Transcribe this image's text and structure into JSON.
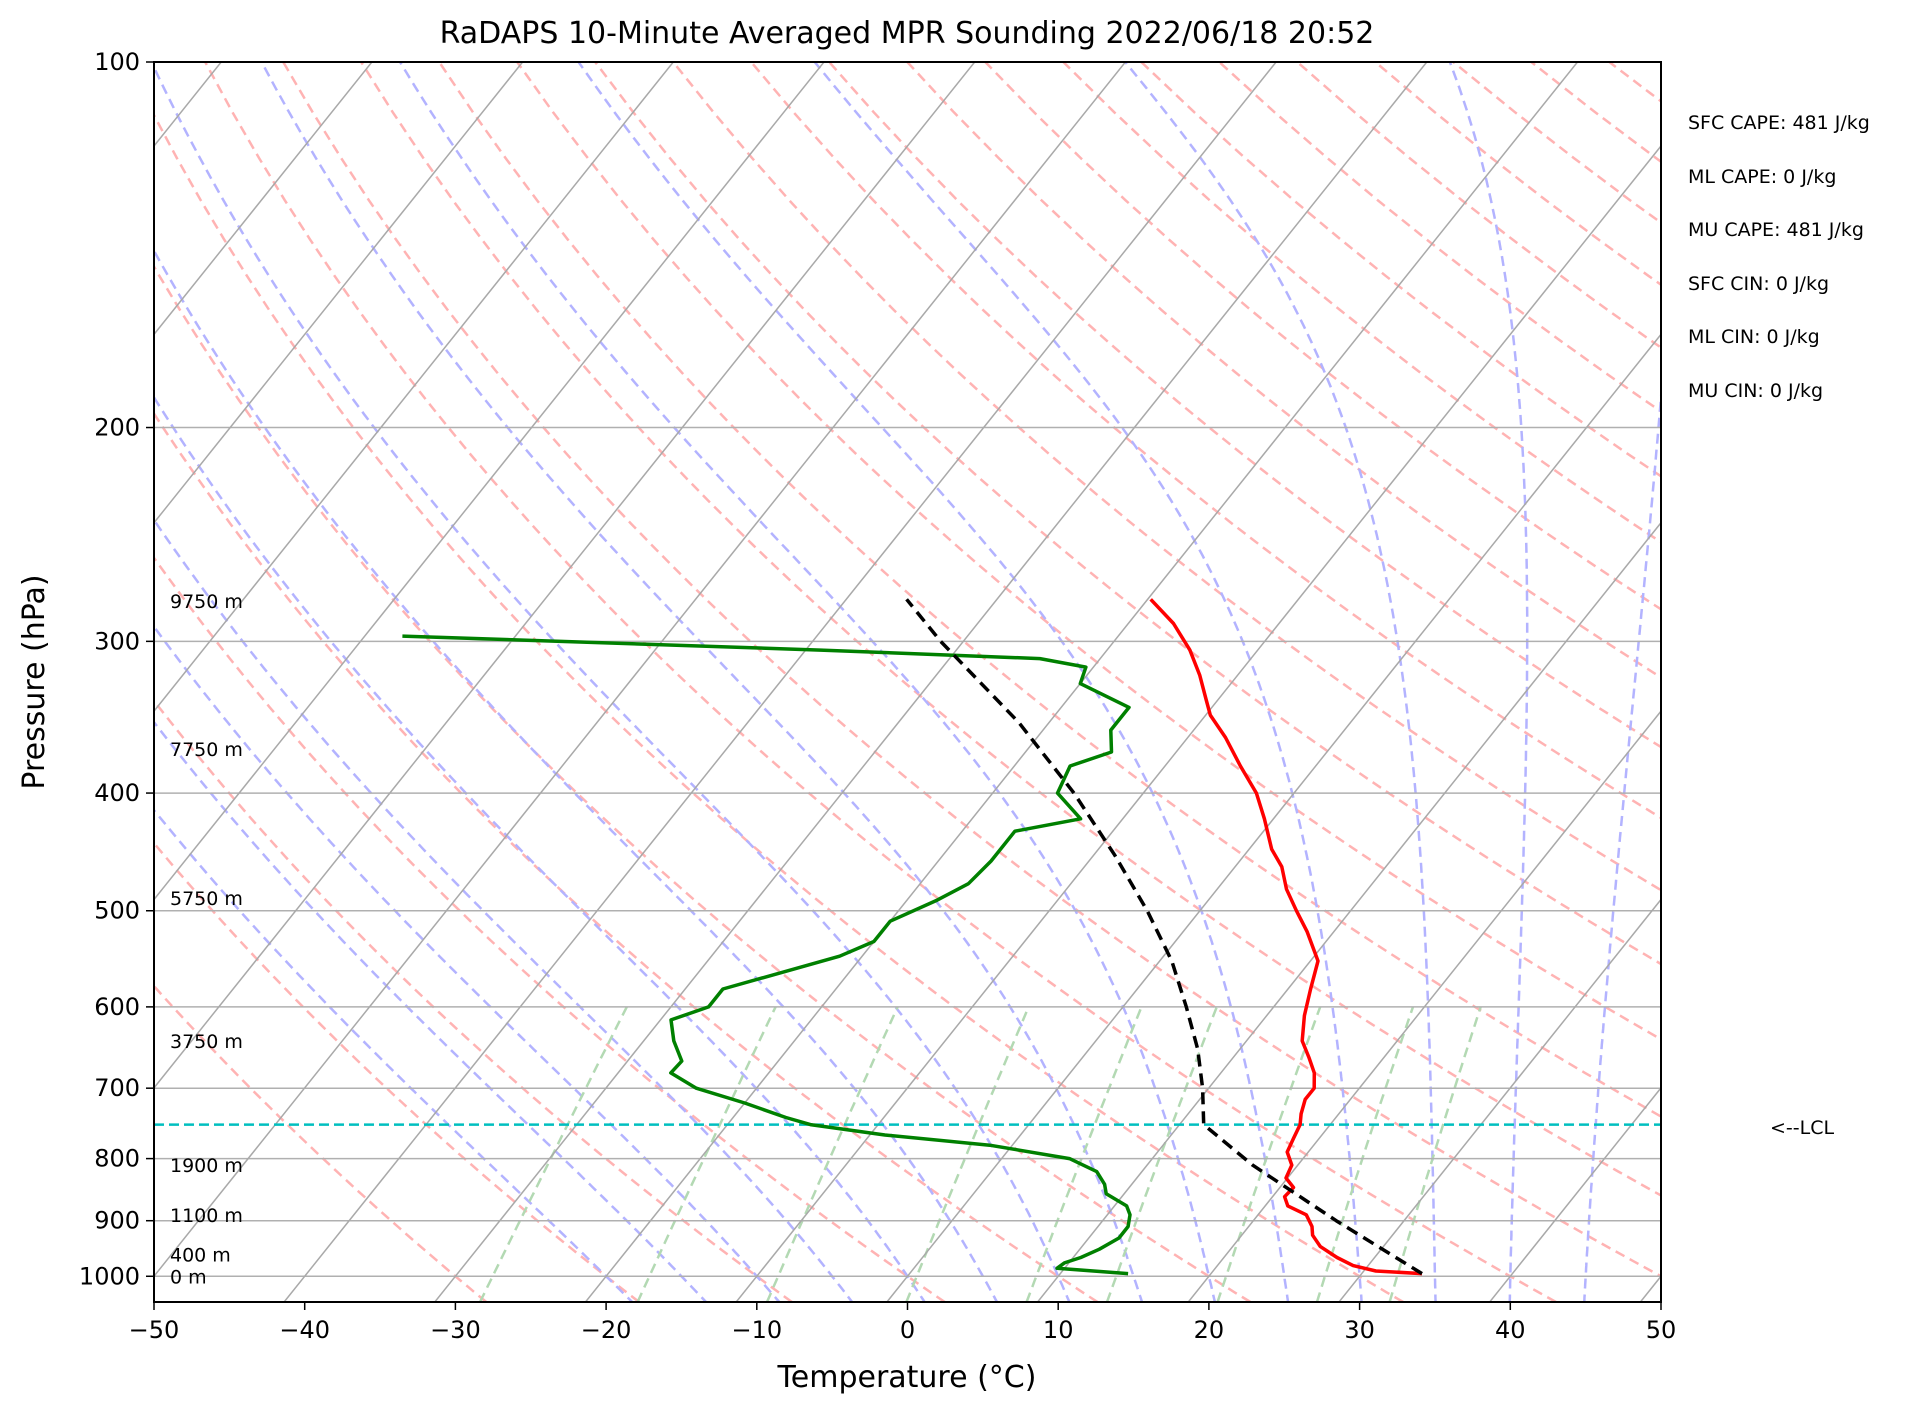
{
  "chart_data": {
    "type": "skew-t log-p sounding",
    "title": "RaDAPS 10-Minute Averaged MPR Sounding 2022/06/18 20:52",
    "xlabel": "Temperature (°C)",
    "ylabel": "Pressure (hPa)",
    "xlim": [
      -50,
      50
    ],
    "ylim": [
      1050,
      100
    ],
    "y_scale": "log",
    "x_ticks": [
      -50,
      -40,
      -30,
      -20,
      -10,
      0,
      10,
      20,
      30,
      40,
      50
    ],
    "x_tick_labels": [
      "−50",
      "−40",
      "−30",
      "−20",
      "−10",
      "0",
      "10",
      "20",
      "30",
      "40",
      "50"
    ],
    "y_ticks": [
      100,
      200,
      300,
      400,
      500,
      600,
      700,
      800,
      900,
      1000
    ],
    "y_tick_labels": [
      "100",
      "200",
      "300",
      "400",
      "500",
      "600",
      "700",
      "800",
      "900",
      "1000"
    ],
    "grid": true,
    "series": [
      {
        "kind": "temperature",
        "color": "#ff0000",
        "style": "solid",
        "points": [
          {
            "p": 995,
            "t": 34.0
          },
          {
            "p": 990,
            "t": 30.8
          },
          {
            "p": 980,
            "t": 29.0
          },
          {
            "p": 965,
            "t": 27.5
          },
          {
            "p": 945,
            "t": 25.8
          },
          {
            "p": 925,
            "t": 24.7
          },
          {
            "p": 910,
            "t": 24.2
          },
          {
            "p": 890,
            "t": 23.2
          },
          {
            "p": 875,
            "t": 21.5
          },
          {
            "p": 860,
            "t": 20.8
          },
          {
            "p": 845,
            "t": 20.9
          },
          {
            "p": 830,
            "t": 19.9
          },
          {
            "p": 810,
            "t": 19.6
          },
          {
            "p": 790,
            "t": 18.6
          },
          {
            "p": 770,
            "t": 18.3
          },
          {
            "p": 750,
            "t": 18.0
          },
          {
            "p": 735,
            "t": 17.5
          },
          {
            "p": 715,
            "t": 17.0
          },
          {
            "p": 700,
            "t": 17.0
          },
          {
            "p": 680,
            "t": 16.2
          },
          {
            "p": 660,
            "t": 15.0
          },
          {
            "p": 640,
            "t": 13.7
          },
          {
            "p": 610,
            "t": 12.5
          },
          {
            "p": 580,
            "t": 11.5
          },
          {
            "p": 550,
            "t": 10.5
          },
          {
            "p": 520,
            "t": 8.2
          },
          {
            "p": 500,
            "t": 6.4
          },
          {
            "p": 480,
            "t": 4.6
          },
          {
            "p": 460,
            "t": 3.1
          },
          {
            "p": 445,
            "t": 1.5
          },
          {
            "p": 420,
            "t": -0.6
          },
          {
            "p": 400,
            "t": -2.5
          },
          {
            "p": 380,
            "t": -5.0
          },
          {
            "p": 360,
            "t": -7.5
          },
          {
            "p": 345,
            "t": -9.7
          },
          {
            "p": 335,
            "t": -10.8
          },
          {
            "p": 320,
            "t": -12.5
          },
          {
            "p": 305,
            "t": -14.5
          },
          {
            "p": 290,
            "t": -17.0
          },
          {
            "p": 277,
            "t": -19.8
          }
        ]
      },
      {
        "kind": "dewpoint",
        "color": "#008000",
        "style": "solid",
        "points": [
          {
            "p": 995,
            "t": 14.5
          },
          {
            "p": 985,
            "t": 9.5
          },
          {
            "p": 975,
            "t": 9.7
          },
          {
            "p": 965,
            "t": 10.5
          },
          {
            "p": 950,
            "t": 11.3
          },
          {
            "p": 930,
            "t": 12.0
          },
          {
            "p": 910,
            "t": 12.0
          },
          {
            "p": 890,
            "t": 11.5
          },
          {
            "p": 875,
            "t": 10.8
          },
          {
            "p": 855,
            "t": 8.8
          },
          {
            "p": 840,
            "t": 8.2
          },
          {
            "p": 820,
            "t": 7.0
          },
          {
            "p": 800,
            "t": 4.5
          },
          {
            "p": 780,
            "t": -1.5
          },
          {
            "p": 765,
            "t": -9.0
          },
          {
            "p": 750,
            "t": -14.5
          },
          {
            "p": 740,
            "t": -16.5
          },
          {
            "p": 720,
            "t": -20.0
          },
          {
            "p": 700,
            "t": -24.0
          },
          {
            "p": 680,
            "t": -26.5
          },
          {
            "p": 665,
            "t": -26.4
          },
          {
            "p": 640,
            "t": -28.0
          },
          {
            "p": 615,
            "t": -29.3
          },
          {
            "p": 600,
            "t": -27.5
          },
          {
            "p": 580,
            "t": -27.5
          },
          {
            "p": 545,
            "t": -21.5
          },
          {
            "p": 530,
            "t": -20.0
          },
          {
            "p": 510,
            "t": -20.0
          },
          {
            "p": 490,
            "t": -18.0
          },
          {
            "p": 475,
            "t": -16.8
          },
          {
            "p": 455,
            "t": -16.5
          },
          {
            "p": 430,
            "t": -16.5
          },
          {
            "p": 420,
            "t": -12.8
          },
          {
            "p": 400,
            "t": -15.7
          },
          {
            "p": 380,
            "t": -16.3
          },
          {
            "p": 370,
            "t": -14.3
          },
          {
            "p": 355,
            "t": -15.5
          },
          {
            "p": 340,
            "t": -15.5
          },
          {
            "p": 325,
            "t": -20.0
          },
          {
            "p": 315,
            "t": -20.5
          },
          {
            "p": 310,
            "t": -24.0
          },
          {
            "p": 305,
            "t": -39.0
          },
          {
            "p": 297,
            "t": -67.5
          }
        ]
      },
      {
        "kind": "parcel profile",
        "color": "#000000",
        "style": "dashed",
        "points": [
          {
            "p": 995,
            "t": 34.0
          },
          {
            "p": 900,
            "t": 25.5
          },
          {
            "p": 810,
            "t": 17.0
          },
          {
            "p": 750,
            "t": 11.6
          },
          {
            "p": 700,
            "t": 9.6
          },
          {
            "p": 650,
            "t": 7.2
          },
          {
            "p": 600,
            "t": 4.2
          },
          {
            "p": 550,
            "t": 0.8
          },
          {
            "p": 500,
            "t": -3.5
          },
          {
            "p": 450,
            "t": -8.6
          },
          {
            "p": 400,
            "t": -14.6
          },
          {
            "p": 350,
            "t": -22.0
          },
          {
            "p": 300,
            "t": -31.5
          },
          {
            "p": 277,
            "t": -36.0
          }
        ]
      }
    ],
    "lcl": {
      "pressure": 750,
      "label": "<--LCL",
      "color": "#00bfbf"
    },
    "height_labels": [
      {
        "pressure": 1000,
        "text": "0 m"
      },
      {
        "pressure": 960,
        "text": "400 m"
      },
      {
        "pressure": 890,
        "text": "1100 m"
      },
      {
        "pressure": 810,
        "text": "1900 m"
      },
      {
        "pressure": 640,
        "text": "3750 m"
      },
      {
        "pressure": 488,
        "text": "5750 m"
      },
      {
        "pressure": 368,
        "text": "7750 m"
      },
      {
        "pressure": 278,
        "text": "9750 m"
      }
    ],
    "stats": [
      "SFC CAPE: 481 J/kg",
      "ML CAPE: 0 J/kg",
      "MU CAPE: 481 J/kg",
      "SFC CIN: 0 J/kg",
      "ML CIN: 0 J/kg",
      "MU CIN: 0 J/kg"
    ],
    "reference_lines": {
      "isotherms": {
        "color": "#a9a9a9",
        "style": "solid",
        "skewed": true
      },
      "dry_adiabats": {
        "color": "#ffb3b3",
        "style": "dashed"
      },
      "moist_adiabats": {
        "color": "#b3b3ff",
        "style": "dashed"
      },
      "mixing_ratio": {
        "color": "#b3d9b3",
        "style": "dashed"
      }
    }
  }
}
